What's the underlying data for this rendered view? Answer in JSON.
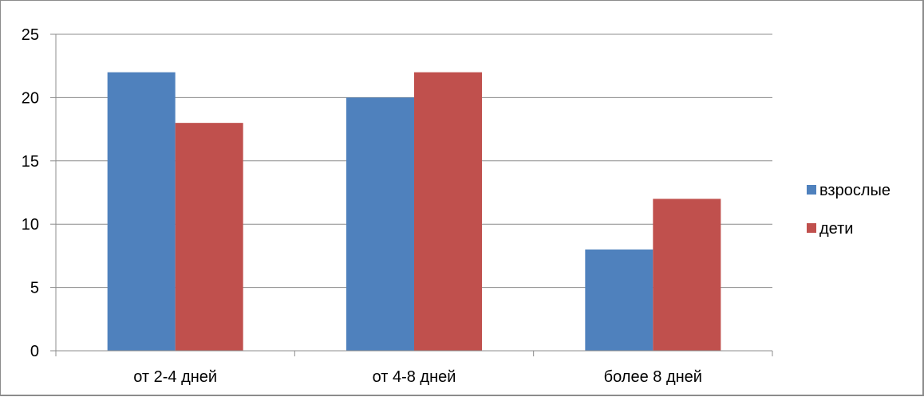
{
  "chart_data": {
    "type": "bar",
    "categories": [
      "от 2-4 дней",
      "от 4-8 дней",
      "более 8 дней"
    ],
    "series": [
      {
        "name": "взрослые",
        "values": [
          22,
          20,
          8
        ],
        "color": "#4f81bd"
      },
      {
        "name": "дети",
        "values": [
          18,
          22,
          12
        ],
        "color": "#c0504d"
      }
    ],
    "title": "",
    "xlabel": "",
    "ylabel": "",
    "ylim": [
      0,
      25
    ],
    "yticks": [
      "0",
      "5",
      "10",
      "15",
      "20",
      "25"
    ],
    "grid": true,
    "legend_position": "right"
  }
}
